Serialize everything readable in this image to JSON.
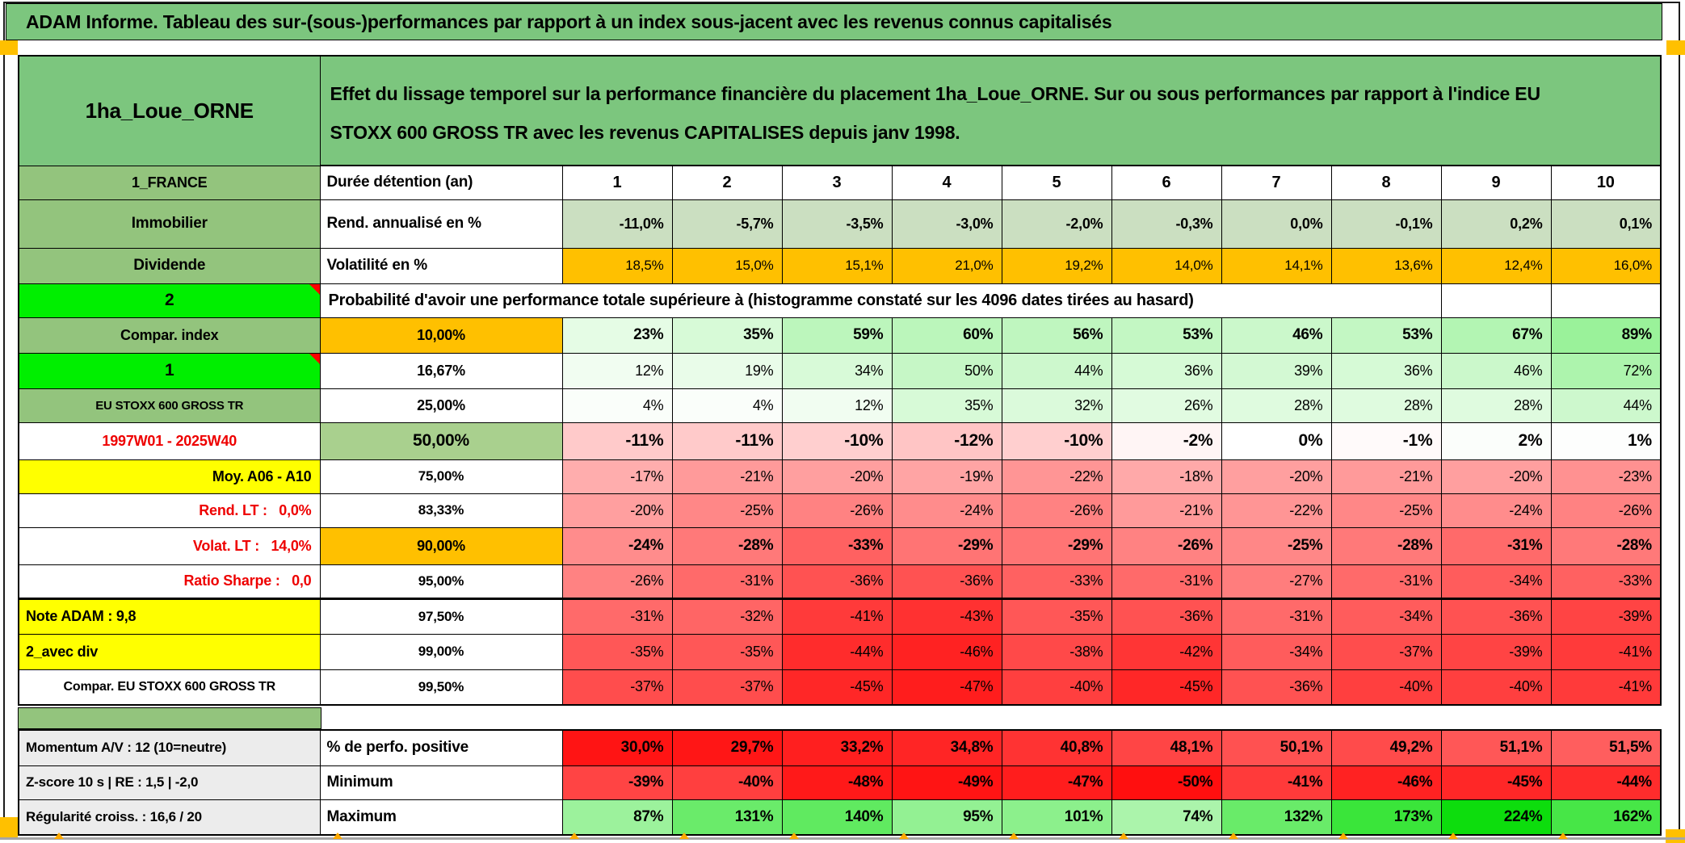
{
  "title": "ADAM Informe. Tableau des sur-(sous-)performances par rapport à un index sous-jacent avec les revenus connus capitalisés",
  "header": {
    "name": "1ha_Loue_ORNE",
    "description": "Effet du lissage temporel sur la performance financière du placement 1ha_Loue_ORNE. Sur ou sous performances par rapport à l'indice EU STOXX 600 GROSS TR avec les revenus CAPITALISES depuis janv 1998."
  },
  "palette": {
    "title_green": "#7cc67e",
    "label_green": "#93c47d",
    "bright_green": "#00ef00",
    "median_green": "#a9d08e",
    "rend_green": "#cbdfc1",
    "orange": "#ffc000",
    "yellow": "#ffff00",
    "gray_label": "#ececec",
    "red_text": "#ee0000",
    "marker_orange": "#ffaa00",
    "comment_red": "#ff0000"
  },
  "rows": [
    {
      "n": "row-duration",
      "section": "main",
      "c1": {
        "t": "1_FRANCE",
        "bg": "#93c47d",
        "fs": 18
      },
      "c2": {
        "t": "Durée détention (an)",
        "al": "l",
        "fs": 19
      },
      "d": {
        "v": [
          "1",
          "2",
          "3",
          "4",
          "5",
          "6",
          "7",
          "8",
          "9",
          "10"
        ],
        "b": 1,
        "fs": 20,
        "al": "c"
      }
    },
    {
      "n": "row-rend",
      "section": "main",
      "c1": {
        "t": "Immobilier",
        "bg": "#93c47d",
        "fs": 19
      },
      "c2": {
        "t": "Rend. annualisé en %",
        "al": "l",
        "fs": 19
      },
      "d": {
        "v": [
          "-11,0%",
          "-5,7%",
          "-3,5%",
          "-3,0%",
          "-2,0%",
          "-0,3%",
          "0,0%",
          "-0,1%",
          "0,2%",
          "0,1%"
        ],
        "bg": [
          "#cbdfc1",
          "#cbdfc1",
          "#cbdfc1",
          "#cbdfc1",
          "#cbdfc1",
          "#cbdfc1",
          "#cbdfc1",
          "#cbdfc1",
          "#cbdfc1",
          "#cbdfc1"
        ],
        "b": 1,
        "fs": 18
      }
    },
    {
      "n": "row-volat",
      "section": "main",
      "c1": {
        "t": "Dividende",
        "bg": "#93c47d",
        "fs": 19
      },
      "c2": {
        "t": "Volatilité en %",
        "al": "l",
        "fs": 19
      },
      "d": {
        "v": [
          "18,5%",
          "15,0%",
          "15,1%",
          "21,0%",
          "19,2%",
          "14,0%",
          "14,1%",
          "13,6%",
          "12,4%",
          "16,0%"
        ],
        "bg": [
          "#ffc000",
          "#ffc000",
          "#ffc000",
          "#ffc000",
          "#ffc000",
          "#ffc000",
          "#ffc000",
          "#ffc000",
          "#ffc000",
          "#ffc000"
        ],
        "b": 0,
        "fs": 17
      }
    },
    {
      "n": "row-prob-header",
      "section": "main",
      "type": "prob",
      "c1": {
        "t": "2",
        "bg": "#00ef00",
        "fs": 21,
        "marker": 1
      },
      "text": "Probabilité d'avoir une performance totale supérieure à (histogramme constaté sur les 4096 dates tirées au hasard)"
    },
    {
      "n": "row-p10",
      "section": "main",
      "c1": {
        "t": "Compar. index",
        "bg": "#93c47d",
        "fs": 18
      },
      "c2": {
        "t": "10,00%",
        "bg": "#ffc000",
        "fs": 18
      },
      "d": {
        "v": [
          "23%",
          "35%",
          "59%",
          "60%",
          "56%",
          "53%",
          "46%",
          "53%",
          "67%",
          "89%"
        ],
        "bg": [
          "#e5fce5",
          "#d7fad7",
          "#bcf6bc",
          "#bbf6bb",
          "#bff6bf",
          "#c3f7c3",
          "#cbf8cb",
          "#c3f7c3",
          "#b3f5b3",
          "#9af29a"
        ],
        "b": 1,
        "fs": 19
      }
    },
    {
      "n": "row-p1667",
      "section": "main",
      "c1": {
        "t": "1",
        "bg": "#00ef00",
        "fs": 21,
        "marker": 1
      },
      "c2": {
        "t": "16,67%",
        "fs": 18
      },
      "d": {
        "v": [
          "12%",
          "19%",
          "34%",
          "50%",
          "44%",
          "36%",
          "39%",
          "36%",
          "46%",
          "72%"
        ],
        "bg": [
          "#f1fdf1",
          "#e9fce9",
          "#d8fad8",
          "#c6f7c6",
          "#cdf8cd",
          "#d6fad6",
          "#d3f9d3",
          "#d6fad6",
          "#cbf8cb",
          "#adf4ad"
        ],
        "b": 0,
        "fs": 18
      }
    },
    {
      "n": "row-p25",
      "section": "main",
      "c1": {
        "t": "EU STOXX 600 GROSS TR",
        "bg": "#93c47d",
        "fs": 15
      },
      "c2": {
        "t": "25,00%",
        "fs": 18
      },
      "d": {
        "v": [
          "4%",
          "4%",
          "12%",
          "35%",
          "32%",
          "26%",
          "28%",
          "28%",
          "28%",
          "44%"
        ],
        "bg": [
          "#fafefa",
          "#fafefa",
          "#f1fdf1",
          "#d7fad7",
          "#dbfadb",
          "#e1fbe1",
          "#dffbdf",
          "#dffbdf",
          "#dffbdf",
          "#cdf8cd"
        ],
        "b": 0,
        "fs": 18
      }
    },
    {
      "n": "row-p50",
      "section": "main",
      "c1": {
        "t": "1997W01 - 2025W40",
        "fg": "#ee0000",
        "fs": 18
      },
      "c2": {
        "t": "50,00%",
        "bg": "#a9d08e",
        "fs": 21
      },
      "d": {
        "v": [
          "-11%",
          "-11%",
          "-10%",
          "-12%",
          "-10%",
          "-2%",
          "0%",
          "-1%",
          "2%",
          "1%"
        ],
        "bg": [
          "#ffcaca",
          "#ffcaca",
          "#ffcfcf",
          "#ffc5c5",
          "#ffcfcf",
          "#fff5f5",
          "#ffffff",
          "#fffafa",
          "#fbfefb",
          "#fdfefd"
        ],
        "b": 1,
        "fs": 21
      }
    },
    {
      "n": "row-p75",
      "section": "main",
      "c1": {
        "t": "Moy. A06 - A10",
        "bg": "#ffff00",
        "al": "r",
        "fs": 18
      },
      "c2": {
        "t": "75,00%",
        "fs": 17
      },
      "d": {
        "v": [
          "-17%",
          "-21%",
          "-20%",
          "-19%",
          "-22%",
          "-18%",
          "-20%",
          "-21%",
          "-20%",
          "-23%"
        ],
        "bg": [
          "#ffadad",
          "#ff9a9a",
          "#ff9f9f",
          "#ffa4a4",
          "#ff9595",
          "#ffa9a9",
          "#ff9f9f",
          "#ff9a9a",
          "#ff9f9f",
          "#ff9191"
        ],
        "b": 0,
        "fs": 18
      }
    },
    {
      "n": "row-p8333",
      "section": "main",
      "c1": {
        "t": "Rend. LT :   0,0%",
        "fg": "#ee0000",
        "al": "r",
        "fs": 18,
        "pre": 1
      },
      "c2": {
        "t": "83,33%",
        "fs": 17
      },
      "d": {
        "v": [
          "-20%",
          "-25%",
          "-26%",
          "-24%",
          "-26%",
          "-21%",
          "-22%",
          "-25%",
          "-24%",
          "-26%"
        ],
        "bg": [
          "#ff9f9f",
          "#ff8787",
          "#ff8282",
          "#ff8c8c",
          "#ff8282",
          "#ff9a9a",
          "#ff9595",
          "#ff8787",
          "#ff8c8c",
          "#ff8282"
        ],
        "b": 0,
        "fs": 18
      }
    },
    {
      "n": "row-p90",
      "section": "main",
      "c1": {
        "t": "Volat. LT :   14,0%",
        "fg": "#ee0000",
        "al": "r",
        "fs": 18,
        "pre": 1
      },
      "c2": {
        "t": "90,00%",
        "bg": "#ffc000",
        "fs": 18
      },
      "d": {
        "v": [
          "-24%",
          "-28%",
          "-33%",
          "-29%",
          "-29%",
          "-26%",
          "-25%",
          "-28%",
          "-31%",
          "-28%"
        ],
        "bg": [
          "#ff8c8c",
          "#ff7979",
          "#ff6161",
          "#ff7474",
          "#ff7474",
          "#ff8282",
          "#ff8787",
          "#ff7979",
          "#ff6a6a",
          "#ff7979"
        ],
        "b": 1,
        "fs": 19
      }
    },
    {
      "n": "row-p95",
      "section": "main",
      "c1": {
        "t": "Ratio Sharpe :   0,0",
        "fg": "#ee0000",
        "al": "r",
        "fs": 18,
        "pre": 1
      },
      "c2": {
        "t": "95,00%",
        "fs": 17
      },
      "d": {
        "v": [
          "-26%",
          "-31%",
          "-36%",
          "-36%",
          "-33%",
          "-31%",
          "-27%",
          "-31%",
          "-34%",
          "-33%"
        ],
        "bg": [
          "#ff8282",
          "#ff6a6a",
          "#ff5252",
          "#ff5252",
          "#ff6161",
          "#ff6a6a",
          "#ff7d7d",
          "#ff6a6a",
          "#ff5c5c",
          "#ff6161"
        ],
        "b": 0,
        "fs": 18
      }
    },
    {
      "n": "row-p975",
      "section": "main",
      "c1": {
        "t": "Note ADAM : 9,8",
        "bg": "#ffff00",
        "al": "l",
        "fs": 18
      },
      "c2": {
        "t": "97,50%",
        "fs": 17
      },
      "d": {
        "v": [
          "-31%",
          "-32%",
          "-41%",
          "-43%",
          "-35%",
          "-36%",
          "-31%",
          "-34%",
          "-36%",
          "-39%"
        ],
        "bg": [
          "#ff6a6a",
          "#ff6565",
          "#ff3a3a",
          "#ff3131",
          "#ff5757",
          "#ff5252",
          "#ff6a6a",
          "#ff5c5c",
          "#ff5252",
          "#ff4444"
        ],
        "b": 0,
        "fs": 18
      }
    },
    {
      "n": "row-p99",
      "section": "main",
      "c1": {
        "t": "2_avec div",
        "bg": "#ffff00",
        "al": "l",
        "fs": 18
      },
      "c2": {
        "t": "99,00%",
        "fs": 17
      },
      "d": {
        "v": [
          "-35%",
          "-35%",
          "-44%",
          "-46%",
          "-38%",
          "-42%",
          "-34%",
          "-37%",
          "-39%",
          "-41%"
        ],
        "bg": [
          "#ff5757",
          "#ff5757",
          "#ff2c2c",
          "#ff2222",
          "#ff4949",
          "#ff3535",
          "#ff5c5c",
          "#ff4d4d",
          "#ff4444",
          "#ff3a3a"
        ],
        "b": 0,
        "fs": 18
      }
    },
    {
      "n": "row-p995",
      "section": "main",
      "c1": {
        "t": "Compar. EU STOXX 600 GROSS TR",
        "fs": 16
      },
      "c2": {
        "t": "99,50%",
        "fs": 17
      },
      "d": {
        "v": [
          "-37%",
          "-37%",
          "-45%",
          "-47%",
          "-40%",
          "-45%",
          "-36%",
          "-40%",
          "-40%",
          "-41%"
        ],
        "bg": [
          "#ff4d4d",
          "#ff4d4d",
          "#ff2727",
          "#ff1d1d",
          "#ff3f3f",
          "#ff2727",
          "#ff5252",
          "#ff3f3f",
          "#ff3f3f",
          "#ff3a3a"
        ],
        "b": 0,
        "fs": 18
      }
    },
    {
      "n": "row-perfo",
      "section": "bottom",
      "c1": {
        "t": "Momentum A/V : 12 (10=neutre)",
        "bg": "#ececec",
        "al": "l",
        "fs": 17
      },
      "c2": {
        "t": "% de perfo. positive",
        "al": "l",
        "fs": 19
      },
      "d": {
        "v": [
          "30,0%",
          "29,7%",
          "33,2%",
          "34,8%",
          "40,8%",
          "48,1%",
          "50,1%",
          "49,2%",
          "51,1%",
          "51,5%"
        ],
        "bg": [
          "#ff1414",
          "#ff1616",
          "#ff1f1f",
          "#ff2525",
          "#ff3333",
          "#ff4545",
          "#ff5151",
          "#ff4b4b",
          "#ff5757",
          "#ff5e5e"
        ],
        "b": 1,
        "fs": 19
      }
    },
    {
      "n": "row-min",
      "section": "bottom",
      "c1": {
        "t": "Z-score 10 s | RE : 1,5 | -2,0",
        "bg": "#ececec",
        "al": "l",
        "fs": 17
      },
      "c2": {
        "t": "Minimum",
        "al": "l",
        "fs": 19
      },
      "d": {
        "v": [
          "-39%",
          "-40%",
          "-48%",
          "-49%",
          "-47%",
          "-50%",
          "-41%",
          "-46%",
          "-45%",
          "-44%"
        ],
        "bg": [
          "#ff4444",
          "#ff3f3f",
          "#ff1919",
          "#ff1414",
          "#ff1d1d",
          "#ff0f0f",
          "#ff3a3a",
          "#ff2222",
          "#ff2727",
          "#ff2c2c"
        ],
        "b": 1,
        "fs": 19
      }
    },
    {
      "n": "row-max",
      "section": "bottom",
      "c1": {
        "t": "Régularité croiss. : 16,6 / 20",
        "bg": "#ececec",
        "al": "l",
        "fs": 17
      },
      "c2": {
        "t": "Maximum",
        "al": "l",
        "fs": 19
      },
      "d": {
        "v": [
          "87%",
          "131%",
          "140%",
          "95%",
          "101%",
          "74%",
          "132%",
          "173%",
          "224%",
          "162%"
        ],
        "bg": [
          "#9cf29c",
          "#6aeb6a",
          "#60ea60",
          "#93f193",
          "#8cf08c",
          "#abf4ab",
          "#69eb69",
          "#3ae53a",
          "#0ddd0d",
          "#47e647"
        ],
        "b": 1,
        "fs": 19
      }
    }
  ]
}
